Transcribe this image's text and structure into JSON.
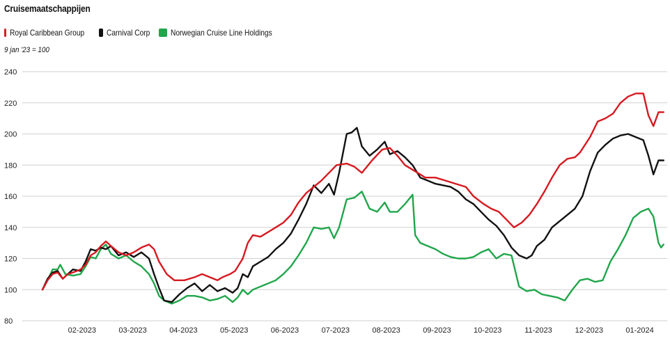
{
  "title": "Cruisemaatschappijen",
  "subtitle": "9 jan '23 = 100",
  "colors": {
    "royal": "#d71920",
    "carnival": "#111111",
    "norwegian": "#1fa64a",
    "grid": "#cfcfcf"
  },
  "legend": [
    {
      "label": "Royal Caribbean Group",
      "color": "#d71920"
    },
    {
      "label": "Carnival Corp",
      "color": "#111111"
    },
    {
      "label": "Norwegian Cruise Line Holdings",
      "color": "#1fa64a"
    }
  ],
  "chart_data": {
    "type": "line",
    "title": "Cruisemaatschappijen",
    "subtitle": "9 jan '23 = 100",
    "xlabel": "",
    "ylabel": "",
    "ylim": [
      80,
      240
    ],
    "yticks": [
      80,
      100,
      120,
      140,
      160,
      180,
      200,
      220,
      240
    ],
    "xticks": [
      {
        "x": 0.78,
        "label": "02-2023"
      },
      {
        "x": 1.78,
        "label": "03-2023"
      },
      {
        "x": 2.78,
        "label": "04-2023"
      },
      {
        "x": 3.78,
        "label": "05-2023"
      },
      {
        "x": 4.78,
        "label": "06-2023"
      },
      {
        "x": 5.78,
        "label": "07-2023"
      },
      {
        "x": 6.78,
        "label": "08-2023"
      },
      {
        "x": 7.78,
        "label": "09-2023"
      },
      {
        "x": 8.78,
        "label": "10-2023"
      },
      {
        "x": 9.78,
        "label": "11-2023"
      },
      {
        "x": 10.78,
        "label": "12-2023"
      },
      {
        "x": 11.78,
        "label": "01-2024"
      }
    ],
    "grid": true,
    "legend_position": "top-left",
    "series": [
      {
        "name": "Royal Caribbean Group",
        "color": "#d71920",
        "points": [
          [
            0.0,
            100
          ],
          [
            0.1,
            106
          ],
          [
            0.2,
            110
          ],
          [
            0.3,
            111
          ],
          [
            0.4,
            107
          ],
          [
            0.5,
            110
          ],
          [
            0.6,
            111
          ],
          [
            0.75,
            113
          ],
          [
            0.85,
            116
          ],
          [
            0.95,
            122
          ],
          [
            1.05,
            124
          ],
          [
            1.15,
            128
          ],
          [
            1.25,
            131
          ],
          [
            1.35,
            128
          ],
          [
            1.5,
            124
          ],
          [
            1.65,
            122
          ],
          [
            1.8,
            124
          ],
          [
            1.95,
            127
          ],
          [
            2.1,
            129
          ],
          [
            2.2,
            126
          ],
          [
            2.3,
            118
          ],
          [
            2.45,
            110
          ],
          [
            2.6,
            106
          ],
          [
            2.8,
            106
          ],
          [
            3.0,
            108
          ],
          [
            3.15,
            110
          ],
          [
            3.3,
            108
          ],
          [
            3.45,
            106
          ],
          [
            3.55,
            108
          ],
          [
            3.7,
            110
          ],
          [
            3.8,
            112
          ],
          [
            3.95,
            120
          ],
          [
            4.05,
            130
          ],
          [
            4.15,
            135
          ],
          [
            4.3,
            134
          ],
          [
            4.45,
            137
          ],
          [
            4.6,
            140
          ],
          [
            4.75,
            143
          ],
          [
            4.9,
            148
          ],
          [
            5.05,
            156
          ],
          [
            5.2,
            162
          ],
          [
            5.35,
            166
          ],
          [
            5.5,
            170
          ],
          [
            5.65,
            175
          ],
          [
            5.8,
            180
          ],
          [
            6.0,
            181
          ],
          [
            6.15,
            179
          ],
          [
            6.3,
            175
          ],
          [
            6.5,
            183
          ],
          [
            6.7,
            190
          ],
          [
            6.85,
            191
          ],
          [
            7.0,
            186
          ],
          [
            7.15,
            180
          ],
          [
            7.35,
            176
          ],
          [
            7.55,
            172
          ],
          [
            7.75,
            172
          ],
          [
            7.95,
            170
          ],
          [
            8.15,
            168
          ],
          [
            8.35,
            166
          ],
          [
            8.5,
            160
          ],
          [
            8.7,
            155
          ],
          [
            8.85,
            152
          ],
          [
            9.0,
            150
          ],
          [
            9.15,
            145
          ],
          [
            9.3,
            140
          ],
          [
            9.45,
            143
          ],
          [
            9.6,
            148
          ],
          [
            9.75,
            155
          ],
          [
            9.9,
            163
          ],
          [
            10.05,
            172
          ],
          [
            10.2,
            180
          ],
          [
            10.35,
            184
          ],
          [
            10.5,
            185
          ],
          [
            10.6,
            188
          ],
          [
            10.8,
            198
          ],
          [
            10.95,
            208
          ],
          [
            11.1,
            210
          ],
          [
            11.25,
            213
          ],
          [
            11.4,
            220
          ],
          [
            11.55,
            224
          ],
          [
            11.7,
            226
          ],
          [
            11.85,
            226
          ],
          [
            11.95,
            212
          ],
          [
            12.05,
            205
          ],
          [
            12.15,
            214
          ],
          [
            12.25,
            214
          ]
        ]
      },
      {
        "name": "Carnival Corp",
        "color": "#111111",
        "points": [
          [
            0.0,
            100
          ],
          [
            0.1,
            107
          ],
          [
            0.2,
            111
          ],
          [
            0.3,
            112
          ],
          [
            0.4,
            107
          ],
          [
            0.5,
            110
          ],
          [
            0.6,
            113
          ],
          [
            0.75,
            112
          ],
          [
            0.85,
            118
          ],
          [
            0.95,
            126
          ],
          [
            1.05,
            125
          ],
          [
            1.15,
            127
          ],
          [
            1.25,
            126
          ],
          [
            1.35,
            128
          ],
          [
            1.5,
            122
          ],
          [
            1.65,
            124
          ],
          [
            1.8,
            121
          ],
          [
            1.95,
            124
          ],
          [
            2.1,
            120
          ],
          [
            2.2,
            110
          ],
          [
            2.3,
            101
          ],
          [
            2.4,
            93
          ],
          [
            2.55,
            92
          ],
          [
            2.7,
            97
          ],
          [
            2.85,
            101
          ],
          [
            3.0,
            104
          ],
          [
            3.15,
            99
          ],
          [
            3.3,
            103
          ],
          [
            3.45,
            99
          ],
          [
            3.6,
            101
          ],
          [
            3.75,
            98
          ],
          [
            3.85,
            101
          ],
          [
            3.95,
            110
          ],
          [
            4.05,
            108
          ],
          [
            4.15,
            115
          ],
          [
            4.3,
            118
          ],
          [
            4.45,
            121
          ],
          [
            4.6,
            126
          ],
          [
            4.75,
            130
          ],
          [
            4.9,
            136
          ],
          [
            5.05,
            145
          ],
          [
            5.2,
            155
          ],
          [
            5.35,
            167
          ],
          [
            5.5,
            162
          ],
          [
            5.65,
            168
          ],
          [
            5.75,
            161
          ],
          [
            5.85,
            175
          ],
          [
            6.0,
            200
          ],
          [
            6.1,
            201
          ],
          [
            6.2,
            204
          ],
          [
            6.3,
            192
          ],
          [
            6.45,
            186
          ],
          [
            6.6,
            190
          ],
          [
            6.75,
            195
          ],
          [
            6.85,
            187
          ],
          [
            7.0,
            189
          ],
          [
            7.15,
            185
          ],
          [
            7.3,
            180
          ],
          [
            7.45,
            172
          ],
          [
            7.6,
            170
          ],
          [
            7.75,
            168
          ],
          [
            7.9,
            167
          ],
          [
            8.05,
            166
          ],
          [
            8.2,
            163
          ],
          [
            8.35,
            158
          ],
          [
            8.5,
            155
          ],
          [
            8.65,
            150
          ],
          [
            8.8,
            145
          ],
          [
            8.95,
            141
          ],
          [
            9.1,
            135
          ],
          [
            9.25,
            127
          ],
          [
            9.4,
            122
          ],
          [
            9.55,
            120
          ],
          [
            9.65,
            122
          ],
          [
            9.75,
            128
          ],
          [
            9.9,
            132
          ],
          [
            10.05,
            140
          ],
          [
            10.2,
            144
          ],
          [
            10.35,
            148
          ],
          [
            10.5,
            152
          ],
          [
            10.65,
            160
          ],
          [
            10.8,
            176
          ],
          [
            10.95,
            188
          ],
          [
            11.1,
            193
          ],
          [
            11.25,
            197
          ],
          [
            11.4,
            199
          ],
          [
            11.55,
            200
          ],
          [
            11.7,
            198
          ],
          [
            11.85,
            196
          ],
          [
            11.95,
            186
          ],
          [
            12.05,
            174
          ],
          [
            12.15,
            183
          ],
          [
            12.25,
            183
          ]
        ]
      },
      {
        "name": "Norwegian Cruise Line Holdings",
        "color": "#1fa64a",
        "points": [
          [
            0.0,
            100
          ],
          [
            0.1,
            106
          ],
          [
            0.2,
            113
          ],
          [
            0.3,
            113
          ],
          [
            0.35,
            116
          ],
          [
            0.45,
            110
          ],
          [
            0.6,
            109
          ],
          [
            0.75,
            110
          ],
          [
            0.85,
            115
          ],
          [
            0.95,
            121
          ],
          [
            1.05,
            120
          ],
          [
            1.15,
            126
          ],
          [
            1.25,
            129
          ],
          [
            1.35,
            123
          ],
          [
            1.5,
            120
          ],
          [
            1.65,
            122
          ],
          [
            1.8,
            118
          ],
          [
            1.95,
            115
          ],
          [
            2.1,
            110
          ],
          [
            2.2,
            104
          ],
          [
            2.3,
            96
          ],
          [
            2.4,
            93
          ],
          [
            2.55,
            91
          ],
          [
            2.7,
            93
          ],
          [
            2.85,
            96
          ],
          [
            3.0,
            96
          ],
          [
            3.15,
            95
          ],
          [
            3.3,
            93
          ],
          [
            3.45,
            94
          ],
          [
            3.6,
            96
          ],
          [
            3.75,
            92
          ],
          [
            3.85,
            95
          ],
          [
            3.95,
            100
          ],
          [
            4.05,
            97
          ],
          [
            4.15,
            100
          ],
          [
            4.3,
            102
          ],
          [
            4.45,
            104
          ],
          [
            4.6,
            106
          ],
          [
            4.75,
            110
          ],
          [
            4.9,
            115
          ],
          [
            5.05,
            122
          ],
          [
            5.2,
            130
          ],
          [
            5.35,
            140
          ],
          [
            5.5,
            139
          ],
          [
            5.65,
            140
          ],
          [
            5.75,
            133
          ],
          [
            5.85,
            140
          ],
          [
            6.0,
            158
          ],
          [
            6.15,
            159
          ],
          [
            6.3,
            163
          ],
          [
            6.45,
            152
          ],
          [
            6.6,
            150
          ],
          [
            6.75,
            156
          ],
          [
            6.85,
            150
          ],
          [
            7.0,
            150
          ],
          [
            7.15,
            155
          ],
          [
            7.3,
            161
          ],
          [
            7.35,
            135
          ],
          [
            7.45,
            130
          ],
          [
            7.6,
            128
          ],
          [
            7.75,
            126
          ],
          [
            7.9,
            123
          ],
          [
            8.05,
            121
          ],
          [
            8.2,
            120
          ],
          [
            8.35,
            120
          ],
          [
            8.5,
            121
          ],
          [
            8.65,
            124
          ],
          [
            8.8,
            126
          ],
          [
            8.95,
            120
          ],
          [
            9.1,
            123
          ],
          [
            9.25,
            122
          ],
          [
            9.4,
            102
          ],
          [
            9.55,
            99
          ],
          [
            9.7,
            100
          ],
          [
            9.85,
            97
          ],
          [
            10.0,
            96
          ],
          [
            10.15,
            95
          ],
          [
            10.3,
            93
          ],
          [
            10.45,
            100
          ],
          [
            10.6,
            106
          ],
          [
            10.75,
            107
          ],
          [
            10.9,
            105
          ],
          [
            11.05,
            106
          ],
          [
            11.2,
            118
          ],
          [
            11.35,
            126
          ],
          [
            11.5,
            135
          ],
          [
            11.65,
            146
          ],
          [
            11.8,
            150
          ],
          [
            11.95,
            152
          ],
          [
            12.05,
            147
          ],
          [
            12.15,
            130
          ],
          [
            12.2,
            127
          ],
          [
            12.25,
            129
          ]
        ]
      }
    ]
  }
}
